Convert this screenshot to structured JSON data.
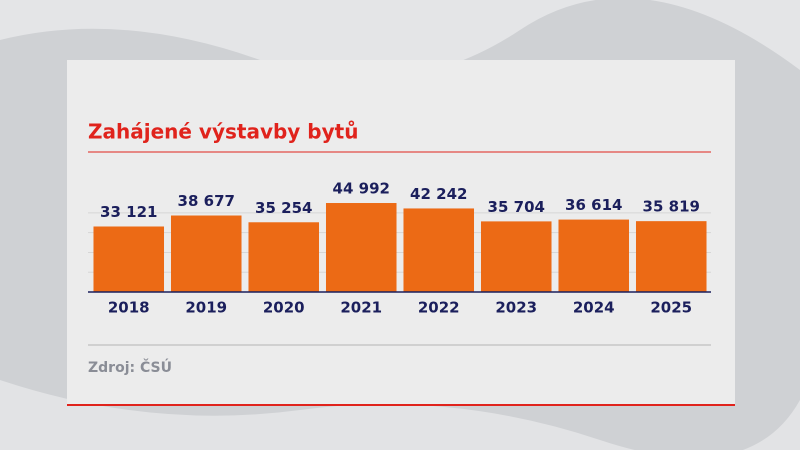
{
  "chart_data": {
    "type": "bar",
    "title": "Zahájené výstavby bytů",
    "categories": [
      "2018",
      "2019",
      "2020",
      "2021",
      "2022",
      "2023",
      "2024",
      "2025"
    ],
    "values": [
      33121,
      38677,
      35254,
      44992,
      42242,
      35704,
      36614,
      35819
    ],
    "value_labels": [
      "33 121",
      "38 677",
      "35 254",
      "44 992",
      "42 242",
      "35 704",
      "36 614",
      "35 819"
    ],
    "color": "#ec6a15",
    "ylim": [
      0,
      45000
    ],
    "yticks": [
      10000,
      20000,
      30000,
      40000
    ],
    "grid": true,
    "source": "Zdroj: ČSÚ"
  }
}
